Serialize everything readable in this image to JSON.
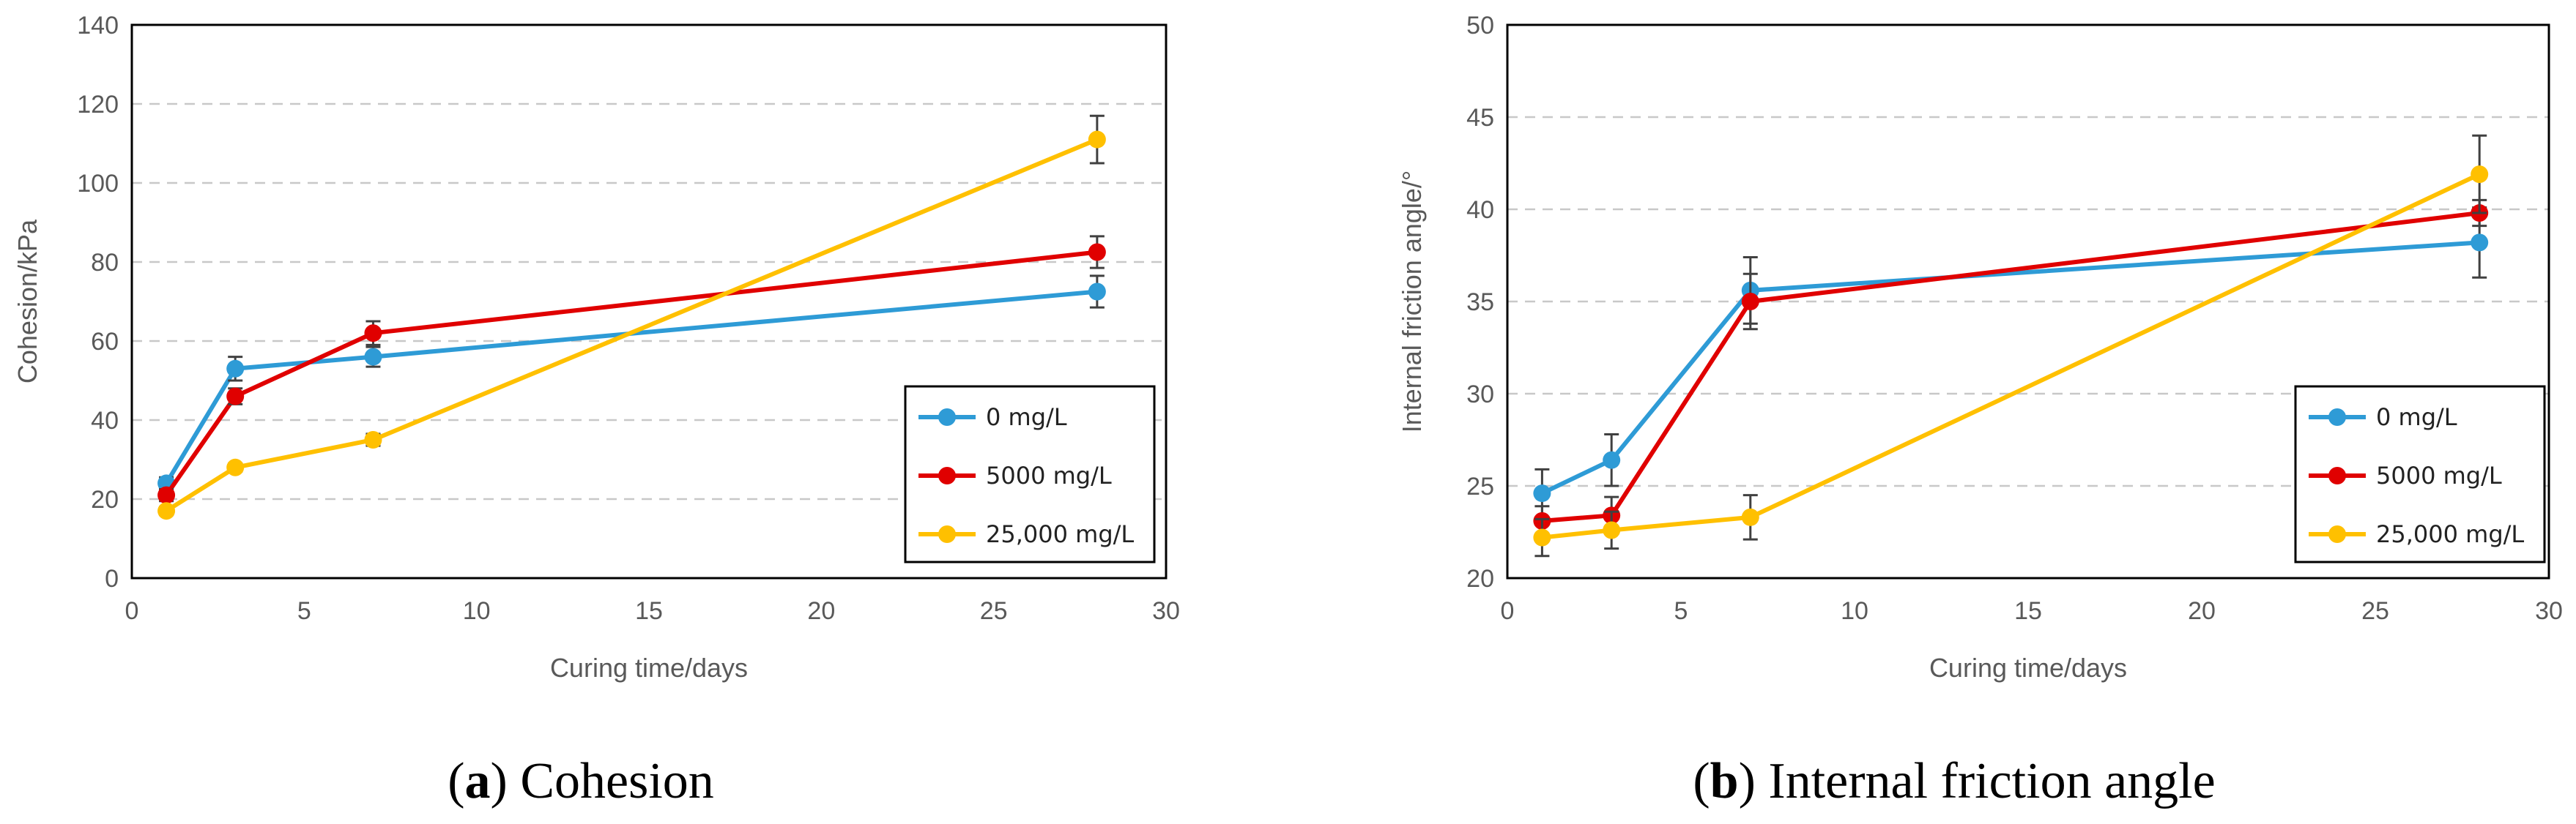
{
  "colors": {
    "series": [
      "#2E9BD6",
      "#E00000",
      "#FFC000"
    ],
    "grid": "#C8C8C8",
    "axis_text": "#595959",
    "error_bar": "#404040"
  },
  "captions": [
    {
      "tag": "a",
      "text": "Cohesion"
    },
    {
      "tag": "b",
      "text": "Internal friction angle"
    }
  ],
  "chart_data": [
    {
      "type": "line",
      "title": "",
      "xlabel": "Curing time/days",
      "ylabel": "Cohesion/kPa",
      "xlim": [
        0,
        30
      ],
      "ylim": [
        0,
        140
      ],
      "xticks": [
        0,
        5,
        10,
        15,
        20,
        25,
        30
      ],
      "yticks": [
        0,
        20,
        40,
        60,
        80,
        100,
        120,
        140
      ],
      "grid": "horizontal dashed",
      "legend_position": "bottom-right",
      "series": [
        {
          "name": "0 mg/L",
          "x": [
            1,
            3,
            7,
            28
          ],
          "y": [
            24,
            53,
            56,
            72.5
          ],
          "err": [
            1.5,
            3,
            2.5,
            4
          ]
        },
        {
          "name": "5000 mg/L",
          "x": [
            1,
            3,
            7,
            28
          ],
          "y": [
            21,
            46,
            62,
            82.5
          ],
          "err": [
            1.5,
            2,
            3,
            4
          ]
        },
        {
          "name": "25,000 mg/L",
          "x": [
            1,
            3,
            7,
            28
          ],
          "y": [
            17,
            28,
            35,
            111
          ],
          "err": [
            1,
            1,
            1.5,
            6
          ]
        }
      ]
    },
    {
      "type": "line",
      "title": "",
      "xlabel": "Curing time/days",
      "ylabel": "Internal friction angle/°",
      "xlim": [
        0,
        30
      ],
      "ylim": [
        20,
        50
      ],
      "xticks": [
        0,
        5,
        10,
        15,
        20,
        25,
        30
      ],
      "yticks": [
        20,
        25,
        30,
        35,
        40,
        45,
        50
      ],
      "grid": "horizontal dashed",
      "legend_position": "bottom-right",
      "series": [
        {
          "name": "0 mg/L",
          "x": [
            1,
            3,
            7,
            28
          ],
          "y": [
            24.6,
            26.4,
            35.6,
            38.2
          ],
          "err": [
            1.3,
            1.4,
            1.8,
            1.9
          ]
        },
        {
          "name": "5000 mg/L",
          "x": [
            1,
            3,
            7,
            28
          ],
          "y": [
            23.1,
            23.4,
            35.0,
            39.8
          ],
          "err": [
            0.8,
            1.0,
            1.5,
            0.7
          ]
        },
        {
          "name": "25,000 mg/L",
          "x": [
            1,
            3,
            7,
            28
          ],
          "y": [
            22.2,
            22.6,
            23.3,
            41.9
          ],
          "err": [
            1.0,
            1.0,
            1.2,
            2.1
          ]
        }
      ]
    }
  ]
}
